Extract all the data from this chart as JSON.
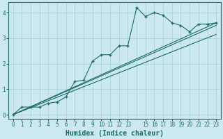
{
  "title": "",
  "xlabel": "Humidex (Indice chaleur)",
  "background_color": "#cce9f0",
  "plot_color": "#1a6b6b",
  "grid_color": "#aad4dc",
  "xlim": [
    -0.5,
    23.5
  ],
  "ylim": [
    -0.15,
    4.4
  ],
  "xticks": [
    0,
    1,
    2,
    3,
    4,
    5,
    6,
    7,
    8,
    9,
    10,
    11,
    12,
    13,
    15,
    16,
    17,
    18,
    19,
    20,
    21,
    22,
    23
  ],
  "yticks": [
    0,
    1,
    2,
    3,
    4
  ],
  "line1_x": [
    0,
    1,
    2,
    3,
    4,
    5,
    6,
    7,
    8,
    9,
    10,
    11,
    12,
    13,
    14,
    15,
    16,
    17,
    18,
    19,
    20,
    21,
    22,
    23
  ],
  "line1_y": [
    0.0,
    0.3,
    0.3,
    0.3,
    0.45,
    0.5,
    0.7,
    1.3,
    1.35,
    2.1,
    2.35,
    2.35,
    2.7,
    2.7,
    4.2,
    3.85,
    4.0,
    3.9,
    3.6,
    3.5,
    3.25,
    3.55,
    3.55,
    3.6
  ],
  "line2_x": [
    0,
    23
  ],
  "line2_y": [
    0.0,
    3.6
  ],
  "line3_x": [
    0,
    23
  ],
  "line3_y": [
    0.0,
    3.15
  ],
  "line4_x": [
    0,
    23
  ],
  "line4_y": [
    0.0,
    3.5
  ]
}
